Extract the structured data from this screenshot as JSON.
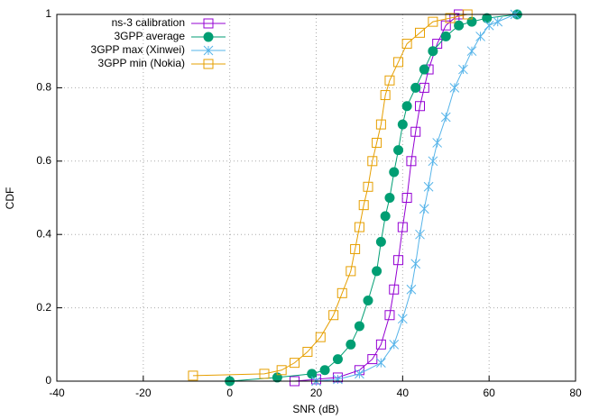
{
  "chart_data": {
    "type": "line",
    "xlabel": "SNR (dB)",
    "ylabel": "CDF",
    "xlim": [
      -40,
      80
    ],
    "xticks": [
      -40,
      -20,
      0,
      20,
      40,
      60,
      80
    ],
    "ylim": [
      0,
      1
    ],
    "yticks": [
      0,
      0.2,
      0.4,
      0.6,
      0.8,
      1
    ],
    "grid": true,
    "legend": "top-left",
    "series": [
      {
        "name": "ns-3 calibration",
        "color": "#9400d3",
        "marker": "open-square",
        "x": [
          15,
          20,
          25,
          30,
          33,
          35,
          37,
          38,
          39,
          40,
          41,
          42,
          43,
          44,
          45,
          46,
          48,
          50,
          52,
          53
        ],
        "values": [
          0,
          0.005,
          0.01,
          0.03,
          0.06,
          0.1,
          0.18,
          0.25,
          0.33,
          0.42,
          0.5,
          0.6,
          0.68,
          0.75,
          0.8,
          0.85,
          0.92,
          0.97,
          0.99,
          1
        ]
      },
      {
        "name": "3GPP average",
        "color": "#009e73",
        "marker": "filled-circle",
        "x": [
          0,
          11,
          19,
          22,
          25,
          28,
          30,
          32,
          34,
          35,
          36,
          37,
          38,
          39,
          40,
          41,
          43,
          45,
          47,
          50,
          53,
          56,
          59.5,
          66.5
        ],
        "values": [
          0,
          0.01,
          0.02,
          0.03,
          0.06,
          0.1,
          0.15,
          0.22,
          0.3,
          0.38,
          0.45,
          0.5,
          0.57,
          0.63,
          0.7,
          0.75,
          0.8,
          0.85,
          0.9,
          0.94,
          0.97,
          0.98,
          0.99,
          1
        ]
      },
      {
        "name": "3GPP max (Xinwei)",
        "color": "#56b4e9",
        "marker": "cross",
        "x": [
          20,
          25,
          30,
          35,
          38,
          40,
          42,
          43,
          44,
          45,
          46,
          47,
          48,
          50,
          52,
          54,
          56,
          58,
          60,
          62,
          66
        ],
        "values": [
          0,
          0.005,
          0.02,
          0.05,
          0.1,
          0.17,
          0.25,
          0.32,
          0.4,
          0.47,
          0.53,
          0.6,
          0.65,
          0.72,
          0.8,
          0.85,
          0.9,
          0.94,
          0.97,
          0.98,
          1
        ]
      },
      {
        "name": "3GPP min (Nokia)",
        "color": "#e69f00",
        "marker": "open-square",
        "x": [
          -8.5,
          8,
          12,
          15,
          18,
          21,
          24,
          26,
          28,
          29,
          30,
          31,
          32,
          33,
          34,
          35,
          36,
          37,
          39,
          41,
          44,
          47,
          51,
          55
        ],
        "values": [
          0.015,
          0.02,
          0.03,
          0.05,
          0.08,
          0.12,
          0.18,
          0.24,
          0.3,
          0.36,
          0.42,
          0.48,
          0.53,
          0.6,
          0.65,
          0.7,
          0.78,
          0.82,
          0.87,
          0.92,
          0.95,
          0.98,
          0.99,
          1
        ]
      }
    ]
  }
}
